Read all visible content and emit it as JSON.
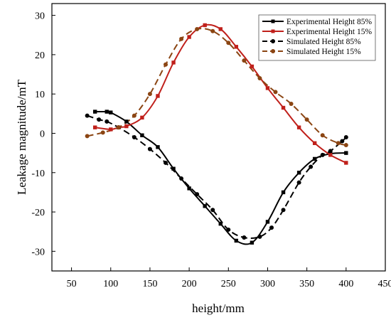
{
  "chart_data": {
    "type": "line",
    "xlabel": "height/mm",
    "ylabel": "Leakage magnitude/mT",
    "xlim": [
      25,
      450
    ],
    "ylim": [
      -35,
      33
    ],
    "xticks": [
      50,
      100,
      150,
      200,
      250,
      300,
      350,
      400,
      450
    ],
    "yticks": [
      -30,
      -20,
      -10,
      0,
      10,
      20,
      30
    ],
    "grid": false,
    "legend_position": "top-right",
    "series": [
      {
        "name": "Experimental Height 85%",
        "color": "#000000",
        "line_style": "solid",
        "marker": "square",
        "x": [
          80,
          95,
          100,
          120,
          140,
          160,
          180,
          200,
          220,
          240,
          260,
          280,
          300,
          320,
          340,
          360,
          380,
          400
        ],
        "y": [
          5.5,
          5.5,
          5.3,
          3,
          -0.5,
          -3.5,
          -9,
          -14,
          -18.5,
          -23,
          -27.3,
          -27.8,
          -22.5,
          -15,
          -10,
          -6.5,
          -5.2,
          -5
        ]
      },
      {
        "name": "Experimental Height 15%",
        "color": "#c0201b",
        "line_style": "solid",
        "marker": "square",
        "x": [
          80,
          100,
          110,
          120,
          140,
          160,
          180,
          200,
          220,
          240,
          260,
          280,
          300,
          320,
          340,
          360,
          380,
          400
        ],
        "y": [
          1.5,
          1,
          1.5,
          1.8,
          4,
          9.5,
          18,
          24.5,
          27.5,
          26.5,
          22,
          17,
          11.5,
          6.5,
          1.5,
          -2.5,
          -5.5,
          -7.5
        ]
      },
      {
        "name": "Simulated Height 85%",
        "color": "#000000",
        "line_style": "dashed",
        "marker": "circle",
        "x": [
          70,
          85,
          95,
          110,
          130,
          150,
          170,
          190,
          210,
          230,
          250,
          270,
          290,
          305,
          320,
          340,
          355,
          370,
          380,
          395,
          400
        ],
        "y": [
          4.5,
          3.5,
          3,
          1.5,
          -1,
          -4,
          -7.5,
          -11.5,
          -15.5,
          -19.5,
          -24.5,
          -26.5,
          -26.3,
          -24,
          -19.5,
          -12.5,
          -8.5,
          -5.5,
          -4.5,
          -2,
          -1
        ]
      },
      {
        "name": "Simulated Height 15%",
        "color": "#8b4513",
        "line_style": "dashed",
        "marker": "circle",
        "x": [
          70,
          90,
          110,
          130,
          150,
          170,
          190,
          210,
          230,
          250,
          270,
          290,
          310,
          330,
          350,
          370,
          390,
          400
        ],
        "y": [
          -0.7,
          0.2,
          1.5,
          4.5,
          10,
          17.5,
          24,
          26.5,
          26,
          23,
          18.5,
          14,
          10.5,
          7.5,
          3.5,
          -0.5,
          -2.5,
          -3
        ]
      }
    ]
  }
}
